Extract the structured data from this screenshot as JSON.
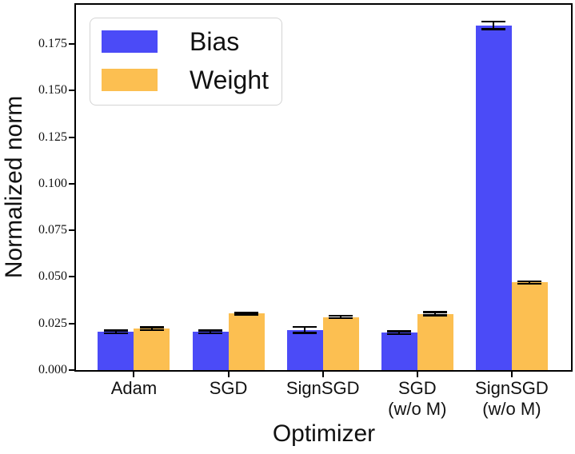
{
  "figure": {
    "background": "#ffffff",
    "axis_color": "#000000"
  },
  "chart_data": {
    "type": "bar",
    "title": "",
    "xlabel": "Optimizer",
    "ylabel": "Normalized norm",
    "categories": [
      "Adam",
      "SGD",
      "SignSGD",
      "SGD\n(w/o M)",
      "SignSGD\n(w/o M)"
    ],
    "series": [
      {
        "name": "Bias",
        "color": "#4b4bf7",
        "values": [
          0.0205,
          0.0205,
          0.0215,
          0.02,
          0.185
        ],
        "errors": [
          0.0008,
          0.0008,
          0.0016,
          0.0008,
          0.002
        ]
      },
      {
        "name": "Weight",
        "color": "#fcbf51",
        "values": [
          0.0222,
          0.0303,
          0.0285,
          0.0302,
          0.047
        ],
        "errors": [
          0.0008,
          0.0005,
          0.0006,
          0.0008,
          0.0006
        ]
      }
    ],
    "error_bar_color": "#000000",
    "ylim": [
      0,
      0.196
    ],
    "yticks": [
      "0.000",
      "0.025",
      "0.050",
      "0.075",
      "0.100",
      "0.125",
      "0.150",
      "0.175"
    ],
    "grid": "off",
    "legend_position": "upper-left"
  }
}
